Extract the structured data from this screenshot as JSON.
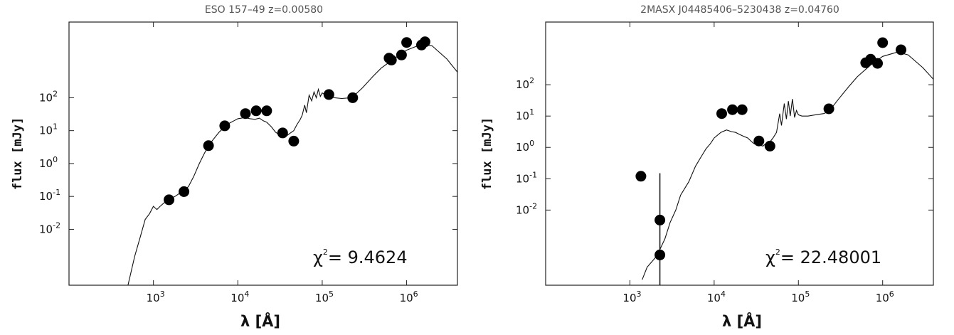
{
  "chart_data": [
    {
      "type": "scatter",
      "title": "ESO 157–49 z=0.00580",
      "xlabel": "λ [Å]",
      "ylabel": "flux [mJy]",
      "xscale": "log",
      "yscale": "log",
      "xlim": [
        100,
        4000000
      ],
      "ylim": [
        0.0002,
        20000
      ],
      "xticks": [
        {
          "value": 1000,
          "base": "10",
          "exp": "3"
        },
        {
          "value": 10000,
          "base": "10",
          "exp": "4"
        },
        {
          "value": 100000,
          "base": "10",
          "exp": "5"
        },
        {
          "value": 1000000,
          "base": "10",
          "exp": "6"
        }
      ],
      "yticks": [
        {
          "value": 0.01,
          "base": "10",
          "exp": "-2"
        },
        {
          "value": 0.1,
          "base": "10",
          "exp": "-1"
        },
        {
          "value": 1,
          "base": "10",
          "exp": "0"
        },
        {
          "value": 10,
          "base": "10",
          "exp": "1"
        },
        {
          "value": 100,
          "base": "10",
          "exp": "2"
        }
      ],
      "chi_base": "χ",
      "chi_exp": "2",
      "chi_value": "= 9.4624",
      "points": [
        {
          "x": 1530,
          "y": 0.079
        },
        {
          "x": 2300,
          "y": 0.14
        },
        {
          "x": 4500,
          "y": 3.5
        },
        {
          "x": 7000,
          "y": 14
        },
        {
          "x": 12300,
          "y": 33
        },
        {
          "x": 16500,
          "y": 40
        },
        {
          "x": 22000,
          "y": 40
        },
        {
          "x": 34000,
          "y": 8.5
        },
        {
          "x": 46000,
          "y": 4.8
        },
        {
          "x": 120000,
          "y": 125
        },
        {
          "x": 230000,
          "y": 100
        },
        {
          "x": 620000,
          "y": 1600
        },
        {
          "x": 660000,
          "y": 1400
        },
        {
          "x": 870000,
          "y": 2000
        },
        {
          "x": 1000000,
          "y": 4800
        },
        {
          "x": 1500000,
          "y": 4000
        },
        {
          "x": 1650000,
          "y": 5000
        }
      ],
      "errorbars": [],
      "model": [
        [
          500,
          0.0002
        ],
        [
          600,
          0.0015
        ],
        [
          700,
          0.006
        ],
        [
          800,
          0.02
        ],
        [
          900,
          0.03
        ],
        [
          1000,
          0.05
        ],
        [
          1100,
          0.04
        ],
        [
          1200,
          0.05
        ],
        [
          1300,
          0.06
        ],
        [
          1500,
          0.08
        ],
        [
          1800,
          0.1
        ],
        [
          2000,
          0.12
        ],
        [
          2300,
          0.15
        ],
        [
          2600,
          0.2
        ],
        [
          3000,
          0.4
        ],
        [
          3500,
          1.0
        ],
        [
          4000,
          2.0
        ],
        [
          4500,
          3.5
        ],
        [
          5000,
          5.0
        ],
        [
          6000,
          9.0
        ],
        [
          7000,
          13
        ],
        [
          8000,
          17
        ],
        [
          9000,
          20
        ],
        [
          10000,
          23
        ],
        [
          12000,
          25
        ],
        [
          14000,
          23
        ],
        [
          16000,
          22
        ],
        [
          18000,
          24
        ],
        [
          20000,
          20
        ],
        [
          22000,
          18
        ],
        [
          25000,
          13
        ],
        [
          28000,
          9.0
        ],
        [
          30000,
          8.0
        ],
        [
          34000,
          7.2
        ],
        [
          38000,
          7.0
        ],
        [
          42000,
          8.5
        ],
        [
          46000,
          10
        ],
        [
          50000,
          15
        ],
        [
          55000,
          22
        ],
        [
          58000,
          30
        ],
        [
          62000,
          60
        ],
        [
          65000,
          35
        ],
        [
          70000,
          120
        ],
        [
          75000,
          80
        ],
        [
          80000,
          150
        ],
        [
          85000,
          100
        ],
        [
          90000,
          180
        ],
        [
          95000,
          110
        ],
        [
          100000,
          140
        ],
        [
          110000,
          120
        ],
        [
          120000,
          110
        ],
        [
          140000,
          100
        ],
        [
          170000,
          95
        ],
        [
          200000,
          98
        ],
        [
          230000,
          105
        ],
        [
          300000,
          200
        ],
        [
          400000,
          450
        ],
        [
          500000,
          800
        ],
        [
          700000,
          1500
        ],
        [
          1000000,
          2800
        ],
        [
          1500000,
          4200
        ],
        [
          2000000,
          3800
        ],
        [
          3000000,
          1500
        ],
        [
          4000000,
          600
        ]
      ]
    },
    {
      "type": "scatter",
      "title": "2MASX J04485406–5230438 z=0.04760",
      "xlabel": "λ [Å]",
      "ylabel": "flux [mJy]",
      "xscale": "log",
      "yscale": "log",
      "xlim": [
        100,
        4000000
      ],
      "ylim": [
        4e-05,
        10000
      ],
      "xticks": [
        {
          "value": 1000,
          "base": "10",
          "exp": "3"
        },
        {
          "value": 10000,
          "base": "10",
          "exp": "4"
        },
        {
          "value": 100000,
          "base": "10",
          "exp": "5"
        },
        {
          "value": 1000000,
          "base": "10",
          "exp": "6"
        }
      ],
      "yticks": [
        {
          "value": 0.01,
          "base": "10",
          "exp": "-2"
        },
        {
          "value": 0.1,
          "base": "10",
          "exp": "-1"
        },
        {
          "value": 1,
          "base": "10",
          "exp": "0"
        },
        {
          "value": 10,
          "base": "10",
          "exp": "1"
        },
        {
          "value": 100,
          "base": "10",
          "exp": "2"
        }
      ],
      "chi_base": "χ",
      "chi_exp": "2",
      "chi_value": "= 22.48001",
      "points": [
        {
          "x": 1350,
          "y": 0.12
        },
        {
          "x": 2270,
          "y": 0.0048
        },
        {
          "x": 2270,
          "y": 0.00037
        },
        {
          "x": 12300,
          "y": 12
        },
        {
          "x": 16500,
          "y": 16
        },
        {
          "x": 21500,
          "y": 16
        },
        {
          "x": 34000,
          "y": 1.6
        },
        {
          "x": 46000,
          "y": 1.1
        },
        {
          "x": 230000,
          "y": 17
        },
        {
          "x": 630000,
          "y": 500
        },
        {
          "x": 720000,
          "y": 650
        },
        {
          "x": 870000,
          "y": 480
        },
        {
          "x": 1000000,
          "y": 2200
        },
        {
          "x": 1650000,
          "y": 1300
        }
      ],
      "errorbars": [
        {
          "x": 2270,
          "ylow": 4e-05,
          "yhigh": 0.15
        }
      ],
      "model": [
        [
          1400,
          6e-05
        ],
        [
          1600,
          0.00015
        ],
        [
          2000,
          0.0003
        ],
        [
          2300,
          0.0006
        ],
        [
          2600,
          0.0012
        ],
        [
          3000,
          0.004
        ],
        [
          3500,
          0.01
        ],
        [
          4000,
          0.03
        ],
        [
          5000,
          0.08
        ],
        [
          6000,
          0.25
        ],
        [
          7000,
          0.5
        ],
        [
          8000,
          0.9
        ],
        [
          9000,
          1.3
        ],
        [
          10000,
          2.0
        ],
        [
          12000,
          3.0
        ],
        [
          14000,
          3.6
        ],
        [
          16000,
          3.2
        ],
        [
          18000,
          3.0
        ],
        [
          20000,
          2.6
        ],
        [
          22000,
          2.3
        ],
        [
          25000,
          2.0
        ],
        [
          28000,
          1.5
        ],
        [
          30000,
          1.3
        ],
        [
          34000,
          1.2
        ],
        [
          38000,
          1.1
        ],
        [
          42000,
          1.4
        ],
        [
          46000,
          1.5
        ],
        [
          50000,
          2.0
        ],
        [
          55000,
          3.0
        ],
        [
          60000,
          12
        ],
        [
          63000,
          5
        ],
        [
          68000,
          25
        ],
        [
          72000,
          8
        ],
        [
          76000,
          30
        ],
        [
          80000,
          10
        ],
        [
          85000,
          35
        ],
        [
          90000,
          9
        ],
        [
          95000,
          15
        ],
        [
          100000,
          11
        ],
        [
          110000,
          10
        ],
        [
          130000,
          10
        ],
        [
          160000,
          11
        ],
        [
          200000,
          12
        ],
        [
          230000,
          14
        ],
        [
          300000,
          35
        ],
        [
          400000,
          90
        ],
        [
          500000,
          180
        ],
        [
          700000,
          400
        ],
        [
          1000000,
          800
        ],
        [
          1500000,
          1100
        ],
        [
          2000000,
          900
        ],
        [
          3000000,
          350
        ],
        [
          4000000,
          150
        ]
      ]
    }
  ]
}
